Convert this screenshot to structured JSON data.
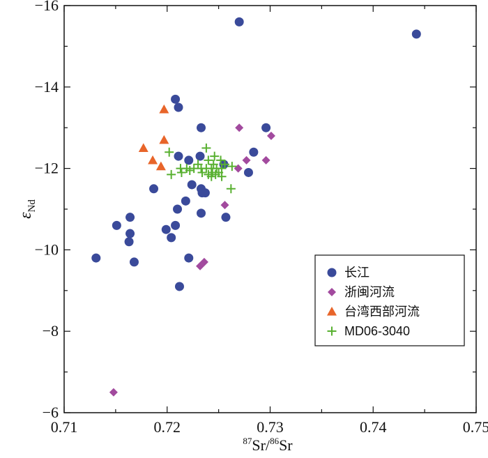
{
  "chart_data": {
    "type": "scatter",
    "xlabel": {
      "sup1": "87",
      "base1": "Sr/",
      "sup2": "86",
      "base2": "Sr"
    },
    "ylabel": {
      "main": "ε",
      "sub": "Nd"
    },
    "xlim": [
      0.71,
      0.75
    ],
    "ylim": [
      -6,
      -16
    ],
    "x_ticks": [
      0.71,
      0.72,
      0.73,
      0.74,
      0.75
    ],
    "x_tick_labels": [
      "0.71",
      "0.72",
      "0.73",
      "0.74",
      "0.75"
    ],
    "y_ticks": [
      -6,
      -8,
      -10,
      -12,
      -14,
      -16
    ],
    "y_tick_labels": [
      "−6",
      "−8",
      "−10",
      "−12",
      "−14",
      "−16"
    ],
    "legend_position": "bottom-right",
    "series": [
      {
        "name": "长江",
        "marker": "circle",
        "color": "#3a4a9a",
        "points": [
          [
            0.727,
            -15.6
          ],
          [
            0.7442,
            -15.3
          ],
          [
            0.7208,
            -13.7
          ],
          [
            0.7211,
            -13.5
          ],
          [
            0.7233,
            -13.0
          ],
          [
            0.7296,
            -13.0
          ],
          [
            0.7284,
            -12.4
          ],
          [
            0.7211,
            -12.3
          ],
          [
            0.7232,
            -12.3
          ],
          [
            0.7221,
            -12.2
          ],
          [
            0.7255,
            -12.1
          ],
          [
            0.7279,
            -11.9
          ],
          [
            0.7224,
            -11.6
          ],
          [
            0.7187,
            -11.5
          ],
          [
            0.7233,
            -11.5
          ],
          [
            0.7234,
            -11.4
          ],
          [
            0.7237,
            -11.4
          ],
          [
            0.7218,
            -11.2
          ],
          [
            0.721,
            -11.0
          ],
          [
            0.7233,
            -10.9
          ],
          [
            0.7164,
            -10.8
          ],
          [
            0.7257,
            -10.8
          ],
          [
            0.7151,
            -10.6
          ],
          [
            0.7208,
            -10.6
          ],
          [
            0.7199,
            -10.5
          ],
          [
            0.7164,
            -10.4
          ],
          [
            0.7204,
            -10.3
          ],
          [
            0.7163,
            -10.2
          ],
          [
            0.7131,
            -9.8
          ],
          [
            0.7221,
            -9.8
          ],
          [
            0.7168,
            -9.7
          ],
          [
            0.7212,
            -9.1
          ]
        ]
      },
      {
        "name": "浙闽河流",
        "marker": "diamond",
        "color": "#a24a9e",
        "points": [
          [
            0.727,
            -13.0
          ],
          [
            0.7301,
            -12.8
          ],
          [
            0.7277,
            -12.2
          ],
          [
            0.7296,
            -12.2
          ],
          [
            0.7269,
            -12.0
          ],
          [
            0.7256,
            -11.1
          ],
          [
            0.7236,
            -9.7
          ],
          [
            0.7232,
            -9.6
          ],
          [
            0.7148,
            -6.5
          ]
        ]
      },
      {
        "name": "台湾西部河流",
        "marker": "triangle",
        "color": "#e8652a",
        "points": [
          [
            0.7197,
            -13.45
          ],
          [
            0.7197,
            -12.7
          ],
          [
            0.7177,
            -12.5
          ],
          [
            0.7186,
            -12.2
          ],
          [
            0.7194,
            -12.05
          ]
        ]
      },
      {
        "name": "MD06-3040",
        "marker": "plus",
        "color": "#58b030",
        "points": [
          [
            0.7238,
            -12.5
          ],
          [
            0.7202,
            -12.4
          ],
          [
            0.7246,
            -12.3
          ],
          [
            0.724,
            -12.2
          ],
          [
            0.7252,
            -12.2
          ],
          [
            0.723,
            -12.1
          ],
          [
            0.7245,
            -12.1
          ],
          [
            0.7256,
            -12.1
          ],
          [
            0.7213,
            -12.0
          ],
          [
            0.7219,
            -12.0
          ],
          [
            0.7226,
            -12.0
          ],
          [
            0.7233,
            -12.0
          ],
          [
            0.7238,
            -12.0
          ],
          [
            0.7243,
            -12.0
          ],
          [
            0.7248,
            -12.0
          ],
          [
            0.7253,
            -12.0
          ],
          [
            0.7263,
            -12.05
          ],
          [
            0.7204,
            -11.85
          ],
          [
            0.7214,
            -11.9
          ],
          [
            0.7234,
            -11.9
          ],
          [
            0.724,
            -11.85
          ],
          [
            0.7244,
            -11.9
          ],
          [
            0.725,
            -11.9
          ],
          [
            0.7222,
            -11.95
          ],
          [
            0.7243,
            -11.8
          ],
          [
            0.7247,
            -11.85
          ],
          [
            0.7253,
            -11.8
          ],
          [
            0.7262,
            -11.5
          ]
        ]
      }
    ]
  }
}
